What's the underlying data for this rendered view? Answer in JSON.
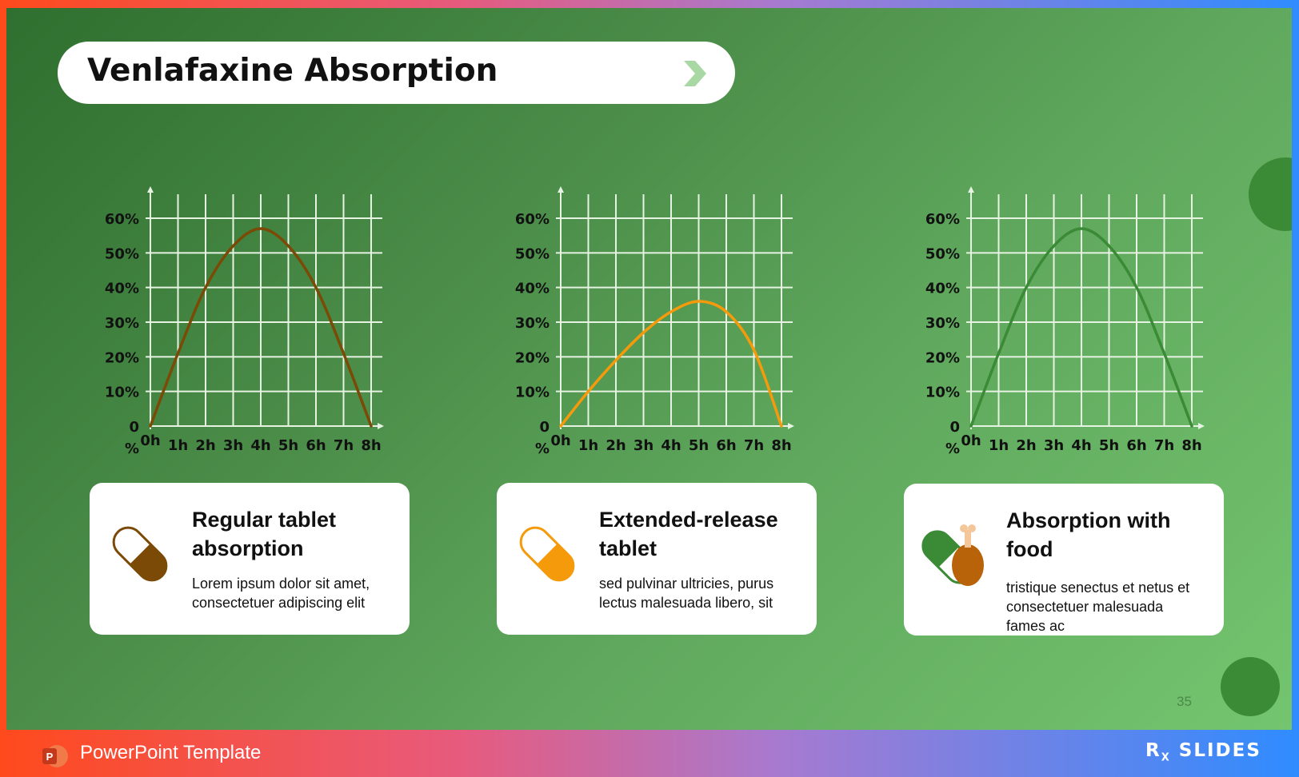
{
  "slide": {
    "title": "Venlafaxine Absorption",
    "page_number": "35"
  },
  "footer": {
    "label": "PowerPoint Template",
    "brand_main": "R",
    "brand_sub": "X",
    "brand_rest": "SLIDES"
  },
  "cards": [
    {
      "title_line1": "Regular tablet",
      "title_line2": "absorption",
      "desc_line1": "Lorem ipsum dolor sit amet,",
      "desc_line2": "consectetuer adipiscing elit",
      "desc_line3": ""
    },
    {
      "title_line1": "Extended-release",
      "title_line2": "tablet",
      "desc_line1": "sed pulvinar ultricies, purus",
      "desc_line2": "lectus malesuada libero, sit",
      "desc_line3": ""
    },
    {
      "title_line1": "Absorption with",
      "title_line2": "food",
      "desc_line1": "tristique senectus et netus et",
      "desc_line2": "consectetuer malesuada",
      "desc_line3": "fames ac"
    }
  ],
  "colors": {
    "regular": "#7a4a06",
    "extended": "#f59a0a",
    "food": "#3a8a36",
    "grid": "#e6f2e2"
  },
  "chart_data": [
    {
      "type": "line",
      "x": [
        "0h",
        "1h",
        "2h",
        "3h",
        "4h",
        "5h",
        "6h",
        "7h",
        "8h"
      ],
      "y_ticks": [
        "0",
        "10%",
        "20%",
        "30%",
        "40%",
        "50%",
        "60%"
      ],
      "y_unit_label": "%",
      "ylim": [
        0,
        65
      ],
      "series": [
        {
          "values": [
            0,
            21,
            40,
            52,
            57,
            52,
            40,
            21,
            0
          ],
          "color": "#7a4a06"
        }
      ],
      "grid": true
    },
    {
      "type": "line",
      "x": [
        "0h",
        "1h",
        "2h",
        "3h",
        "4h",
        "5h",
        "6h",
        "7h",
        "8h"
      ],
      "y_ticks": [
        "0",
        "10%",
        "20%",
        "30%",
        "40%",
        "50%",
        "60%"
      ],
      "y_unit_label": "%",
      "ylim": [
        0,
        65
      ],
      "series": [
        {
          "values": [
            0,
            10,
            19,
            27,
            33,
            36,
            33,
            22,
            0
          ],
          "color": "#f59a0a"
        }
      ],
      "grid": true
    },
    {
      "type": "line",
      "x": [
        "0h",
        "1h",
        "2h",
        "3h",
        "4h",
        "5h",
        "6h",
        "7h",
        "8h"
      ],
      "y_ticks": [
        "0",
        "10%",
        "20%",
        "30%",
        "40%",
        "50%",
        "60%"
      ],
      "y_unit_label": "%",
      "ylim": [
        0,
        65
      ],
      "series": [
        {
          "values": [
            0,
            21,
            40,
            52,
            57,
            52,
            40,
            21,
            0
          ],
          "color": "#3a8a36"
        }
      ],
      "grid": true
    }
  ]
}
